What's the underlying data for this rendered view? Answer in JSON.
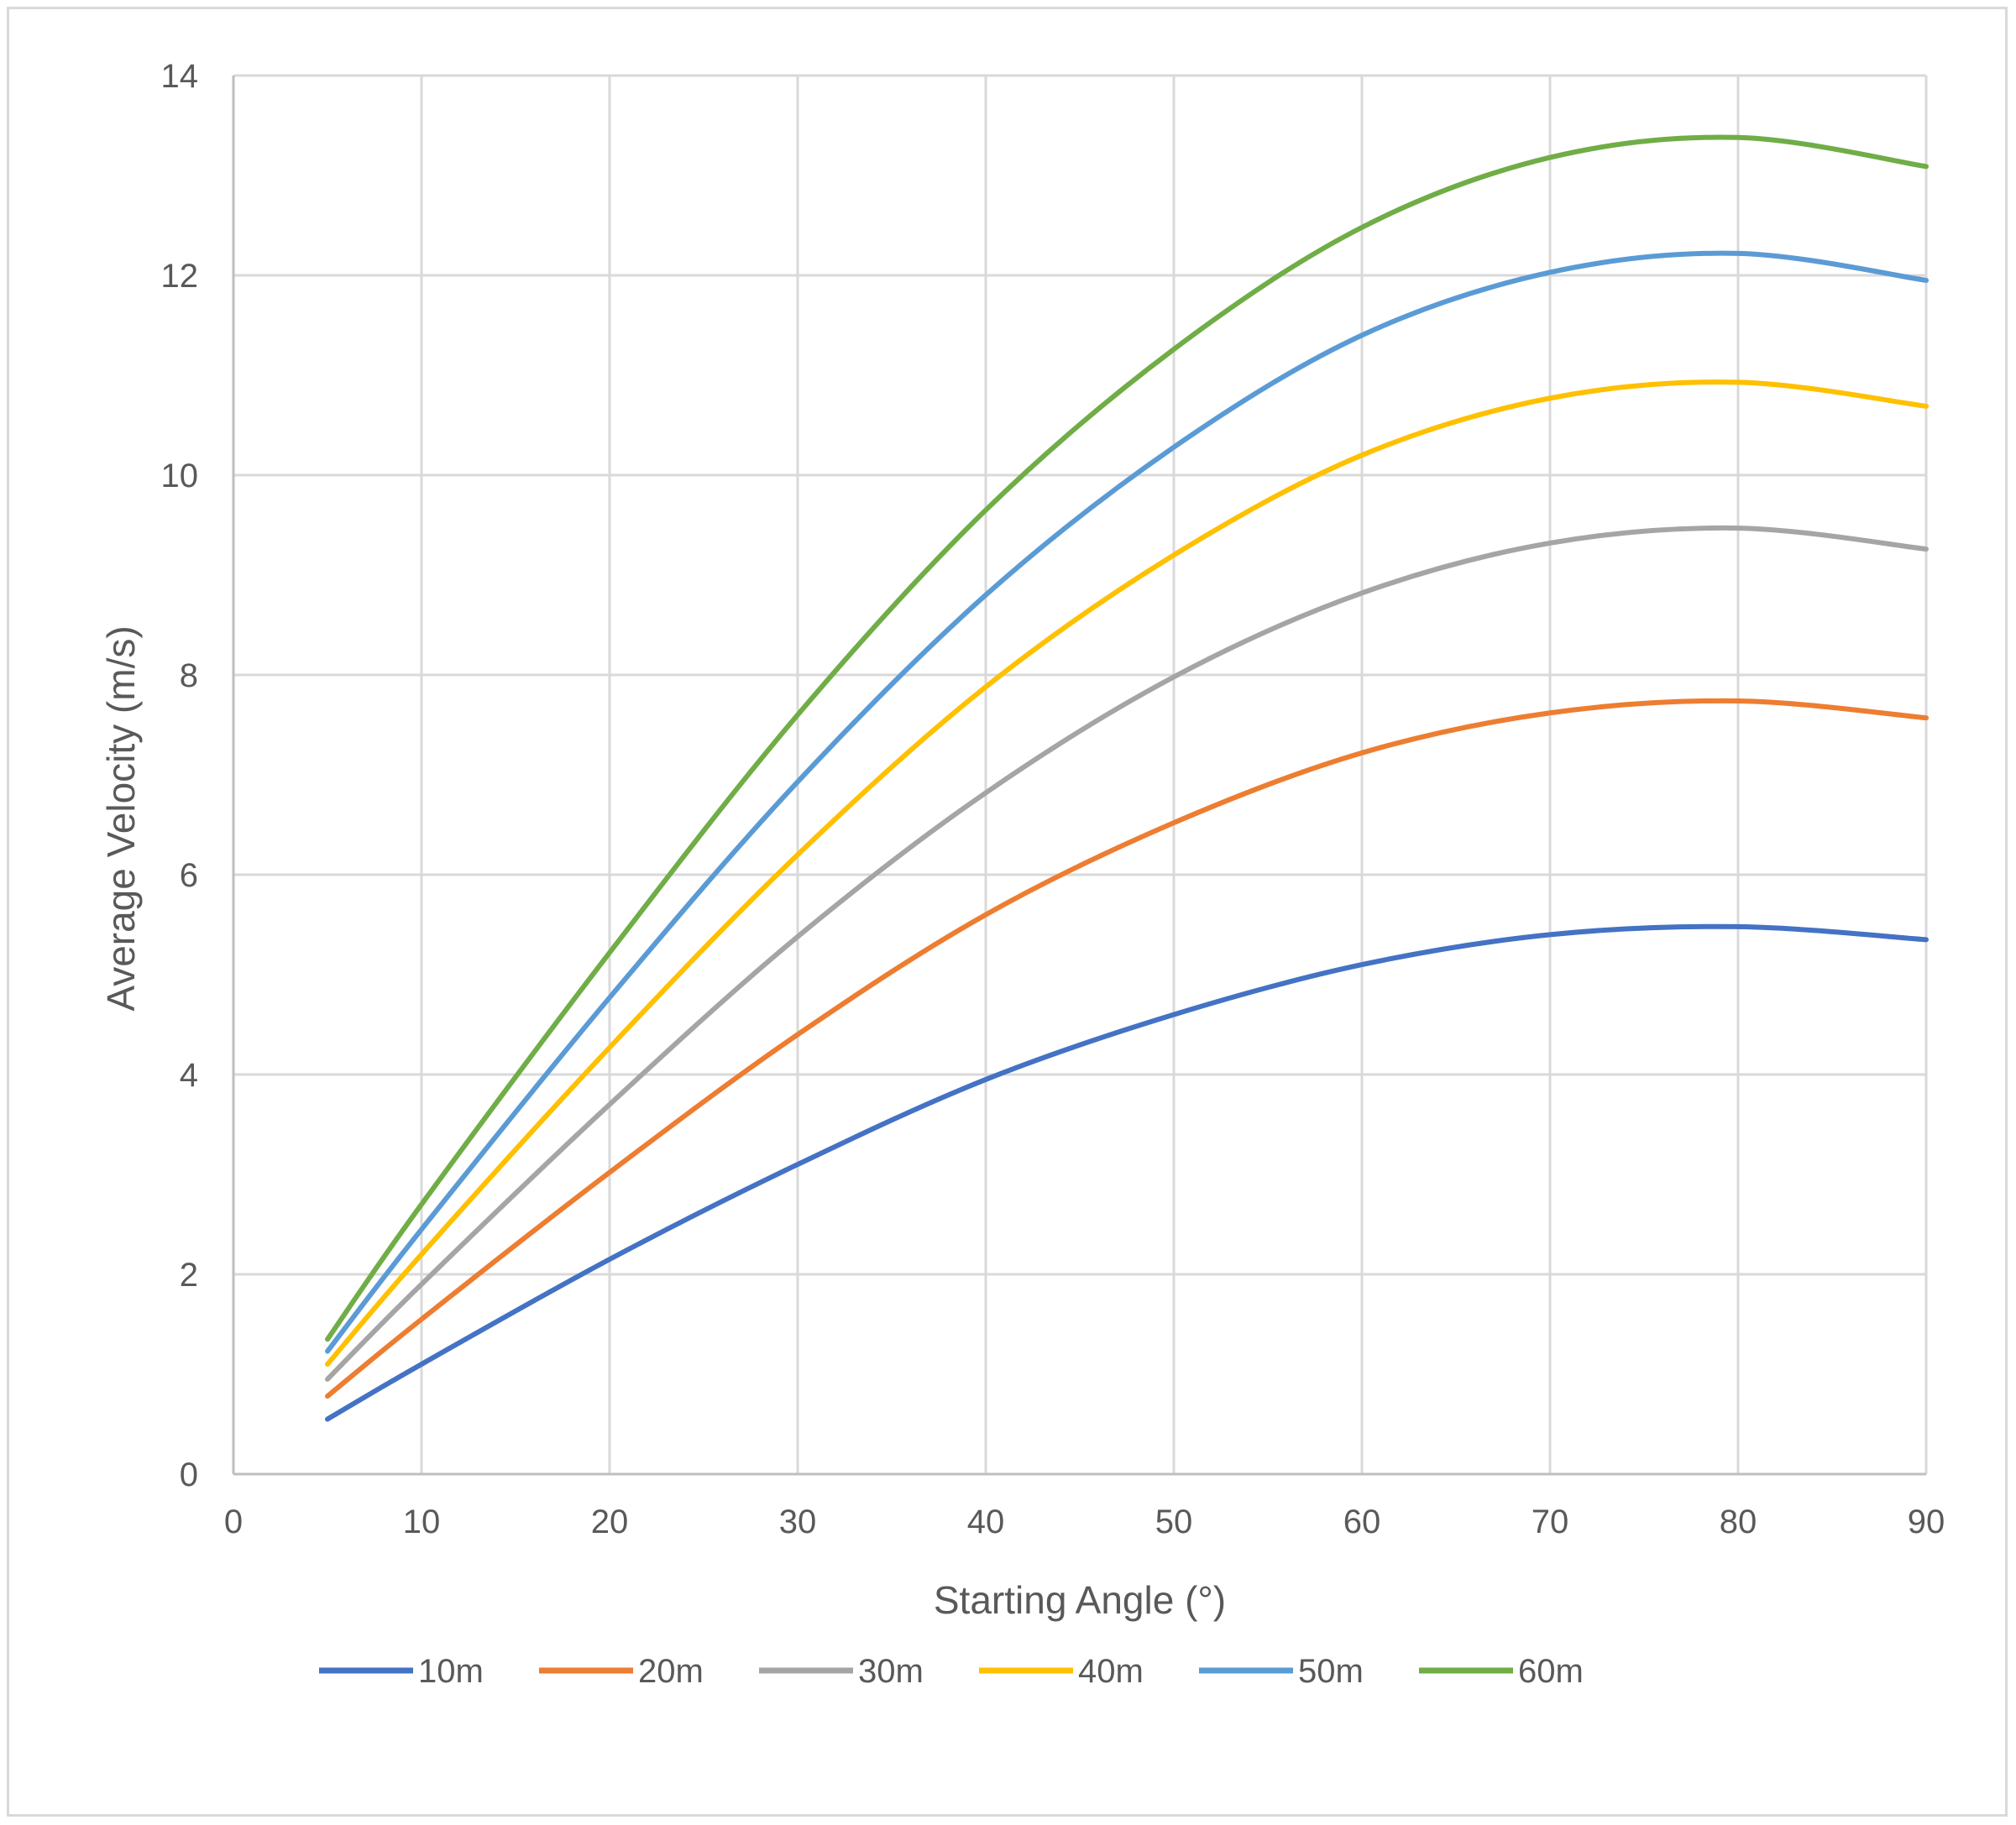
{
  "chart_data": {
    "type": "line",
    "title": "",
    "xlabel": "Starting Angle (°)",
    "ylabel": "Average Velocity (m/s)",
    "xlim": [
      0,
      90
    ],
    "ylim": [
      0,
      14
    ],
    "xticks": [
      0,
      10,
      20,
      30,
      40,
      50,
      60,
      70,
      80,
      90
    ],
    "yticks": [
      0,
      2,
      4,
      6,
      8,
      10,
      12,
      14
    ],
    "grid": true,
    "legend_position": "bottom",
    "x": [
      5,
      10,
      20,
      30,
      40,
      50,
      60,
      70,
      80,
      90
    ],
    "series": [
      {
        "name": "10m",
        "color": "#4472C4",
        "values": [
          0.55,
          1.1,
          2.15,
          3.1,
          3.95,
          4.6,
          5.1,
          5.4,
          5.48,
          5.35
        ]
      },
      {
        "name": "20m",
        "color": "#ED7D31",
        "values": [
          0.78,
          1.55,
          3.02,
          4.4,
          5.6,
          6.52,
          7.22,
          7.62,
          7.74,
          7.57
        ]
      },
      {
        "name": "30m",
        "color": "#A5A5A5",
        "values": [
          0.95,
          1.9,
          3.7,
          5.38,
          6.82,
          7.98,
          8.82,
          9.32,
          9.47,
          9.26
        ]
      },
      {
        "name": "40m",
        "color": "#FFC000",
        "values": [
          1.1,
          2.2,
          4.27,
          6.2,
          7.88,
          9.2,
          10.2,
          10.77,
          10.93,
          10.69
        ]
      },
      {
        "name": "50m",
        "color": "#5B9BD5",
        "values": [
          1.23,
          2.45,
          4.77,
          6.93,
          8.8,
          10.28,
          11.4,
          12.03,
          12.22,
          11.95
        ]
      },
      {
        "name": "60m",
        "color": "#70AD47",
        "values": [
          1.35,
          2.7,
          5.22,
          7.6,
          9.65,
          11.26,
          12.48,
          13.18,
          13.38,
          13.09
        ]
      }
    ],
    "gridColor": "#d9d9d9",
    "axisColor": "#bfbfbf"
  }
}
